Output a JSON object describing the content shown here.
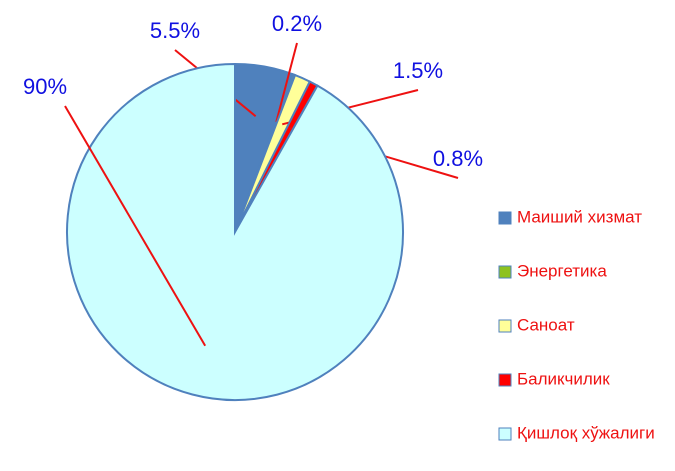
{
  "chart_data": {
    "type": "pie",
    "categories": [
      "Маиший хизмат",
      "Энергетика",
      "Саноат",
      "Баликчилик",
      "Қишлоқ хўжалиги"
    ],
    "values": [
      5.5,
      0.2,
      1.5,
      0.8,
      90
    ],
    "value_labels": [
      "5.5%",
      "0.2%",
      "1.5%",
      "0.8%",
      "90%"
    ],
    "colors": [
      "#4f81bd",
      "#8dc21f",
      "#ffff99",
      "#ff0000",
      "#ccffff"
    ],
    "legend": "right"
  }
}
